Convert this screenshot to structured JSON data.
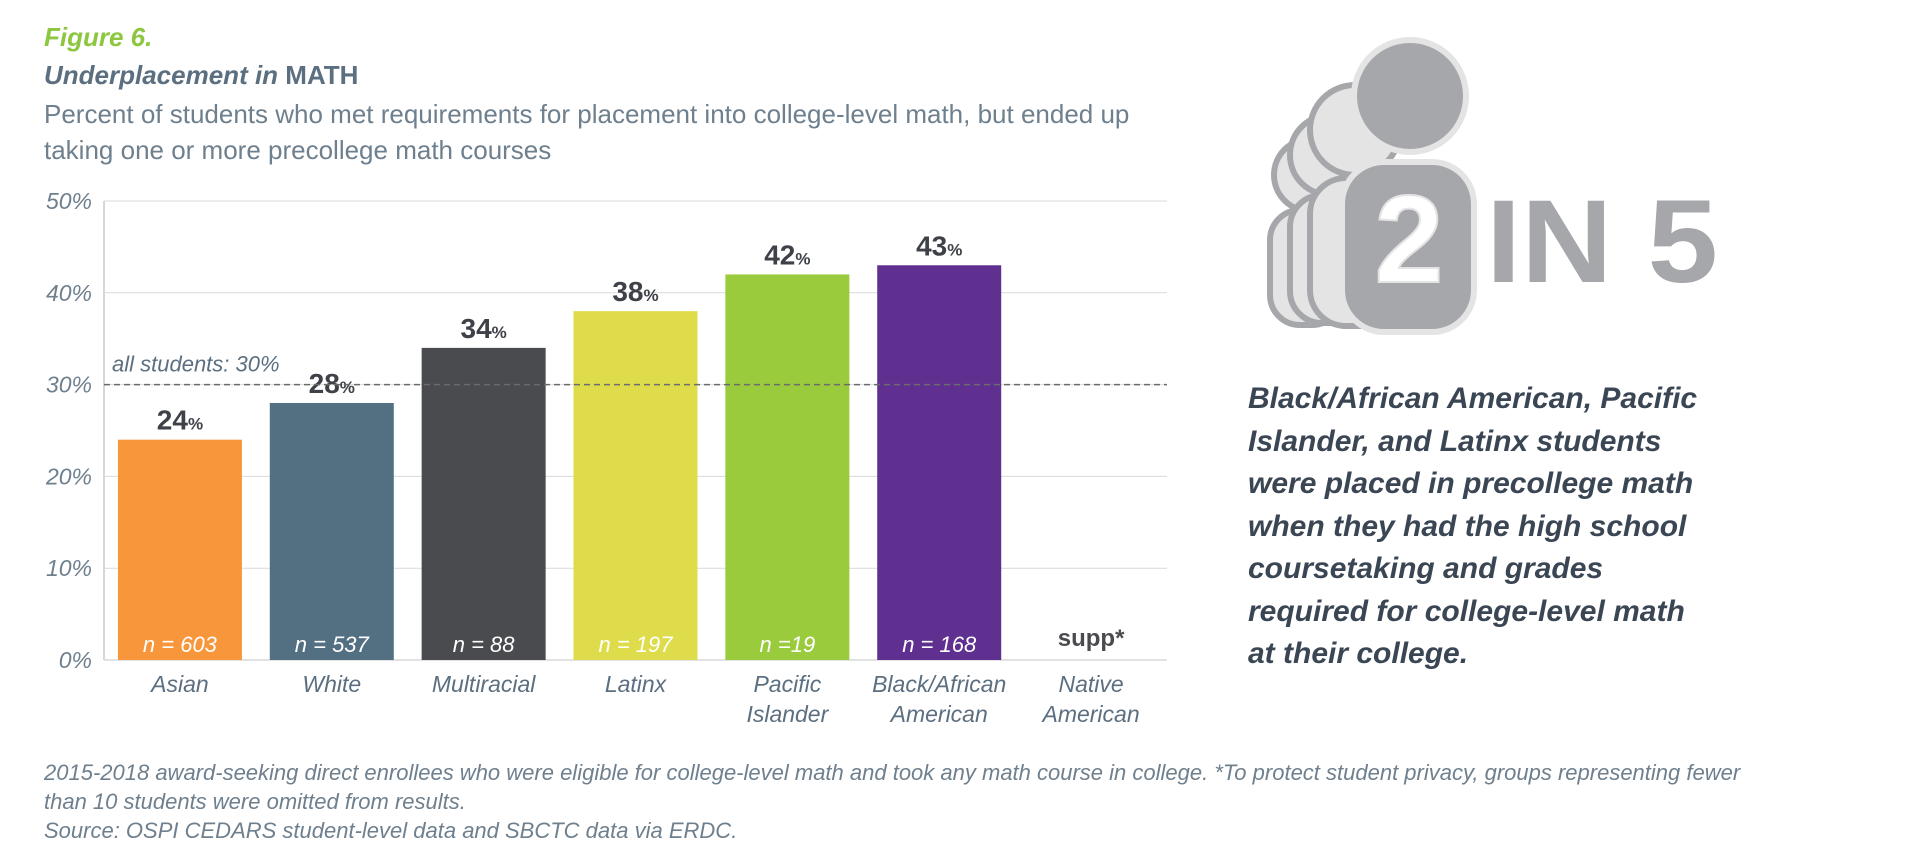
{
  "figure": {
    "label": "Figure 6.",
    "title_em": "Underplacement in",
    "title_strong": "MATH",
    "subtitle": "Percent of students who met requirements for placement into college-level math, but ended up taking one or more precollege math courses"
  },
  "chart_data": {
    "type": "bar",
    "categories": [
      [
        "Asian"
      ],
      [
        "White"
      ],
      [
        "Multiracial"
      ],
      [
        "Latinx"
      ],
      [
        "Pacific",
        "Islander"
      ],
      [
        "Black/African",
        "American"
      ],
      [
        "Native",
        "American"
      ]
    ],
    "values": [
      24,
      28,
      34,
      38,
      42,
      43,
      null
    ],
    "value_labels": [
      "24",
      "28",
      "34",
      "38",
      "42",
      "43",
      "supp*"
    ],
    "n_labels": [
      "n = 603",
      "n = 537",
      "n = 88",
      "n = 197",
      "n =19",
      "n = 168",
      ""
    ],
    "colors": [
      "#f7963a",
      "#536f82",
      "#4a4b4e",
      "#dedc4a",
      "#9acb3c",
      "#5f3090",
      "#ffffff"
    ],
    "ylim": [
      0,
      50
    ],
    "yticks": [
      "0%",
      "10%",
      "20%",
      "30%",
      "40%",
      "50%"
    ],
    "grid": true,
    "reference_line": {
      "value": 30,
      "label": "all students: 30%"
    }
  },
  "callout": {
    "number": "2",
    "rest": "IN 5",
    "text": "Black/African American, Pacific Islander, and Latinx students were placed in precollege math when they had the high school coursetaking and grades required for college-level math at their college."
  },
  "footnote": {
    "line1": "2015-2018 award-seeking direct enrollees who were eligible for college-level math and took any math course in college. *To protect student privacy, groups representing fewer than 10 students were omitted from results.",
    "line2": "Source: OSPI CEDARS student-level data and SBCTC data via ERDC."
  },
  "colors": {
    "figure_label": "#8dc63f",
    "title": "#5b6f80",
    "icon_gray": "#a6a7aa",
    "icon_light": "#e4e4e5"
  }
}
